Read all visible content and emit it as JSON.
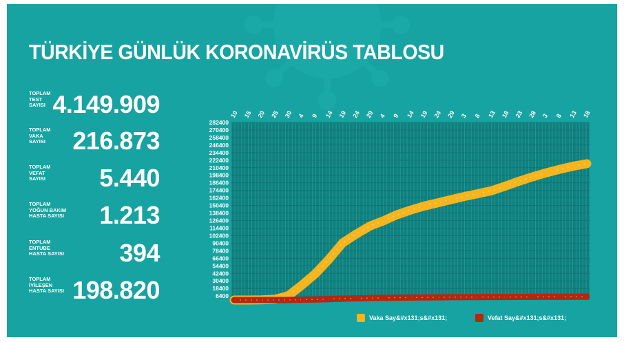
{
  "header": {
    "title": "TÜRKİYE GÜNLÜK KORONAVİRÜS TABLOSU"
  },
  "stats": [
    {
      "label": "TOPLAM\nTEST\nSAYISI",
      "value": "4.149.909"
    },
    {
      "label": "TOPLAM\nVAKA\nSAYISI",
      "value": "216.873"
    },
    {
      "label": "TOPLAM\nVEFAT\nSAYISI",
      "value": "5.440"
    },
    {
      "label": "TOPLAM\nYOĞUN BAKIM\nHASTA SAYISI",
      "value": "1.213"
    },
    {
      "label": "TOPLAM\nENTUBE\nHASTA SAYISI",
      "value": "394"
    },
    {
      "label": "TOPLAM\nİYİLEŞEN\nHASTA SAYISI",
      "value": "198.820"
    }
  ],
  "colors": {
    "background": "#17a3a1",
    "plot_area": "#117f7e",
    "case_series": "#f6b51d",
    "death_series": "#b8260d",
    "text": "#ffffff"
  },
  "chart_data": {
    "type": "line",
    "x": [
      "10",
      "15",
      "20",
      "25",
      "30",
      "4",
      "9",
      "14",
      "19",
      "24",
      "29",
      "4",
      "9",
      "14",
      "19",
      "24",
      "29",
      "3",
      "8",
      "13",
      "18",
      "23",
      "28",
      "3",
      "8",
      "13",
      "18"
    ],
    "y_ticks": [
      "282400",
      "270400",
      "258400",
      "246400",
      "234400",
      "222400",
      "210400",
      "198400",
      "186400",
      "174400",
      "162400",
      "150400",
      "138400",
      "126400",
      "114400",
      "102400",
      "90400",
      "78400",
      "66400",
      "54400",
      "42400",
      "30400",
      "18400",
      "6400"
    ],
    "ylim": [
      0,
      282400
    ],
    "series": [
      {
        "name": "Vaka Say&#x131;s&#x131;",
        "color": "#f6b51d",
        "values": [
          0,
          50,
          300,
          1200,
          7000,
          23900,
          42300,
          65100,
          90900,
          104900,
          117600,
          126000,
          135600,
          143100,
          149400,
          154500,
          159800,
          164800,
          169200,
          174000,
          181300,
          188900,
          195900,
          202300,
          207900,
          212900,
          216873
        ]
      },
      {
        "name": "Vefat Say&#x131;s&#x131;",
        "color": "#b8260d",
        "values": [
          0,
          0,
          4,
          30,
          131,
          501,
          908,
          1403,
          2140,
          2706,
          3174,
          3461,
          3739,
          3952,
          4140,
          4308,
          4461,
          4585,
          4692,
          4778,
          4861,
          4950,
          5046,
          5131,
          5241,
          5361,
          5440
        ]
      }
    ]
  }
}
